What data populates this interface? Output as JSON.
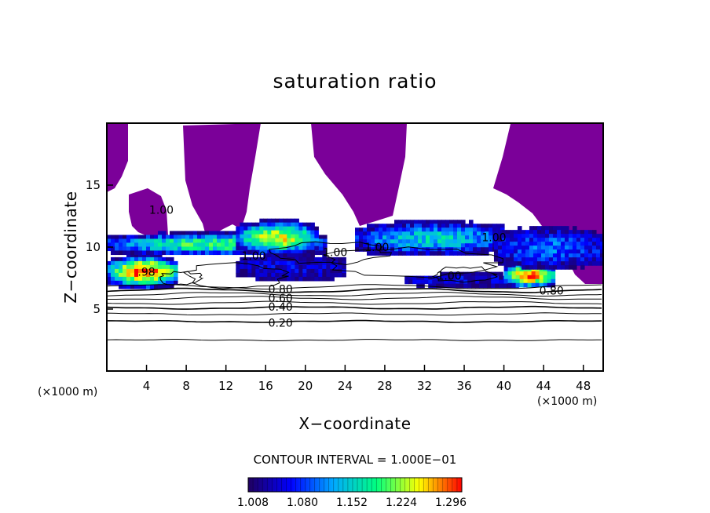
{
  "chart_data": {
    "type": "heatmap",
    "title": "saturation ratio",
    "xlabel": "X−coordinate",
    "ylabel": "Z−coordinate",
    "x_unit": "(×1000 m)",
    "xlim": [
      0,
      50
    ],
    "ylim": [
      0,
      20
    ],
    "x_ticks": [
      4,
      8,
      12,
      16,
      20,
      24,
      28,
      32,
      36,
      40,
      44,
      48
    ],
    "y_ticks": [
      5,
      10,
      15
    ],
    "contour_interval_text": "CONTOUR INTERVAL = 1.000E−01",
    "colorbar": {
      "ticks": [
        "1.008",
        "1.080",
        "1.152",
        "1.224",
        "1.296"
      ],
      "colors": [
        "#200060",
        "#0000ff",
        "#00aaff",
        "#00ff80",
        "#ffff00",
        "#ff0000"
      ]
    },
    "purple_region_color": "#7b0099",
    "contour_labels": [
      {
        "text": "0.20",
        "x": 17.5,
        "y": 3.9
      },
      {
        "text": "0.40",
        "x": 17.5,
        "y": 5.2
      },
      {
        "text": "0.60",
        "x": 17.5,
        "y": 5.9
      },
      {
        "text": "0.80",
        "x": 17.5,
        "y": 6.6
      },
      {
        "text": "0.80",
        "x": 44.8,
        "y": 6.5
      },
      {
        "text": "1.00",
        "x": 14.8,
        "y": 9.3
      },
      {
        "text": "1.00",
        "x": 23.0,
        "y": 9.6
      },
      {
        "text": "1.00",
        "x": 27.2,
        "y": 10.0
      },
      {
        "text": "1.00",
        "x": 34.5,
        "y": 7.7
      },
      {
        "text": "1.00",
        "x": 39.0,
        "y": 10.8
      },
      {
        "text": "1.00",
        "x": 5.5,
        "y": 13.0
      },
      {
        "text": ".98",
        "x": 4.0,
        "y": 8.0
      }
    ],
    "contour_levels_below": [
      {
        "level": 0.1,
        "y": 2.5
      },
      {
        "level": 0.2,
        "y": 4.0
      },
      {
        "level": 0.3,
        "y": 4.6
      },
      {
        "level": 0.4,
        "y": 5.1
      },
      {
        "level": 0.5,
        "y": 5.5
      },
      {
        "level": 0.6,
        "y": 5.9
      },
      {
        "level": 0.7,
        "y": 6.2
      },
      {
        "level": 0.8,
        "y": 6.5
      },
      {
        "level": 0.9,
        "y": 6.8
      }
    ],
    "supersaturated_bands": [
      {
        "x0": 0,
        "x1": 7,
        "y0": 6.8,
        "y1": 9.5,
        "peak": 1.3
      },
      {
        "x0": 0,
        "x1": 22,
        "y0": 9.5,
        "y1": 11.3,
        "peak": 1.2
      },
      {
        "x0": 13,
        "x1": 21,
        "y0": 9.5,
        "y1": 12.3,
        "peak": 1.25
      },
      {
        "x0": 13,
        "x1": 24,
        "y0": 7.5,
        "y1": 9.5,
        "peak": 1.05
      },
      {
        "x0": 25,
        "x1": 40,
        "y0": 9.5,
        "y1": 12.2,
        "peak": 1.15
      },
      {
        "x0": 30,
        "x1": 43,
        "y0": 7.0,
        "y1": 8.0,
        "peak": 1.05
      },
      {
        "x0": 40,
        "x1": 45,
        "y0": 6.8,
        "y1": 9.0,
        "peak": 1.3
      },
      {
        "x0": 39,
        "x1": 50,
        "y0": 8.5,
        "y1": 11.7,
        "peak": 1.1
      }
    ]
  }
}
